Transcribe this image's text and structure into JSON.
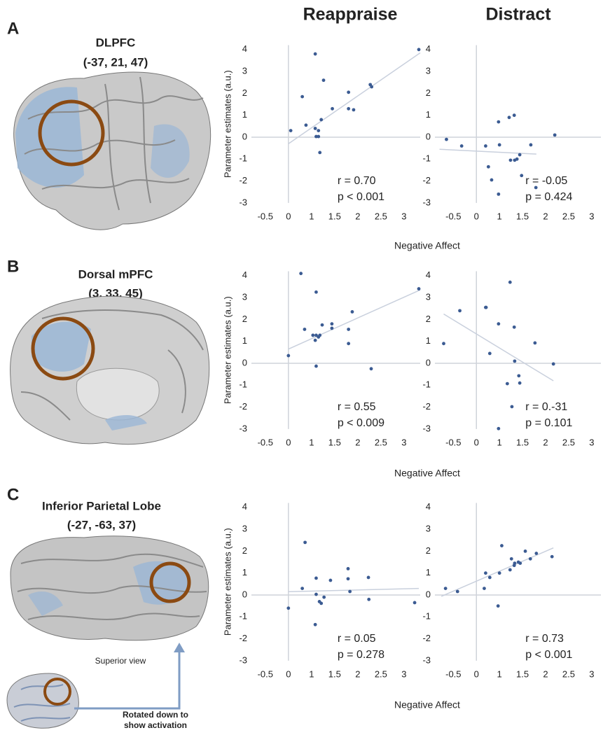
{
  "column_titles": [
    "Reappraise",
    "Distract"
  ],
  "panels": [
    {
      "letter": "A",
      "region": "DLPFC",
      "coordinates": "(-37,  21,  47)",
      "x_label": "Negative Affect"
    },
    {
      "letter": "B",
      "region": "Dorsal mPFC",
      "coordinates": "(3, 33, 45)",
      "x_label": "Negative Affect"
    },
    {
      "letter": "C",
      "region": "Inferior Parietal Lobe",
      "coordinates": "(-27, -63, 37)",
      "x_label": "Negative Affect"
    }
  ],
  "inset": {
    "caption": "Superior view",
    "arrow_text": [
      "Rotated down to",
      "show activation"
    ]
  },
  "chart_data": [
    {
      "type": "scatter",
      "y_label": "Parameter estimates (a.u.)",
      "color": "#3b5b92",
      "x": [
        0.05,
        0.38,
        0.3,
        0.58,
        0.76,
        0.58,
        0.6,
        0.65,
        0.65,
        0.68,
        0.71,
        0.95,
        1.3,
        1.3,
        1.41,
        1.77,
        1.8,
        2.82
      ],
      "values": [
        0.3,
        0.55,
        1.85,
        3.8,
        2.6,
        0.4,
        0.03,
        0.03,
        0.3,
        -0.7,
        0.8,
        1.3,
        2.05,
        1.3,
        1.25,
        2.4,
        2.3,
        4.0
      ],
      "fit": {
        "color": "#c9d0dd",
        "x": [
          0,
          2.85
        ],
        "values": [
          -0.3,
          3.85
        ]
      },
      "annotations": [
        "r = 0.70",
        "p < 0.001"
      ],
      "xlim": [
        -0.8,
        2.85
      ],
      "ylim": [
        -3,
        4.2
      ],
      "xticks": [
        -0.5,
        0,
        {
          "value": 0.5,
          "label": "1"
        },
        {
          "value": 1,
          "label": "1.5"
        },
        {
          "value": 1.5,
          "label": "2"
        },
        {
          "value": 2,
          "label": "2.5"
        },
        {
          "value": 2.5,
          "label": "3"
        }
      ],
      "yticks": [
        -3,
        -2,
        -1,
        0,
        1,
        2,
        3,
        4
      ]
    },
    {
      "type": "scatter",
      "color": "#3b5b92",
      "x": [
        -0.65,
        -0.32,
        0.2,
        0.26,
        0.33,
        0.48,
        0.5,
        0.48,
        0.71,
        0.82,
        0.74,
        0.83,
        0.88,
        0.94,
        0.98,
        1.18,
        1.29,
        1.7
      ],
      "values": [
        -0.1,
        -0.4,
        -0.4,
        -1.35,
        -1.95,
        0.7,
        -0.35,
        -2.6,
        0.9,
        1.0,
        -1.05,
        -1.05,
        -1.0,
        -0.8,
        -1.75,
        -0.35,
        -2.3,
        0.1
      ],
      "fit": {
        "color": "#c9d0dd",
        "x": [
          -0.8,
          1.3
        ],
        "values": [
          -0.55,
          -0.77
        ]
      },
      "annotations": [
        "r = -0.05",
        "p = 0.424"
      ],
      "xlim": [
        -0.9,
        2.7
      ],
      "ylim": [
        -3,
        4.2
      ],
      "xticks": [
        -0.5,
        0,
        {
          "value": 0.5,
          "label": "1"
        },
        {
          "value": 1,
          "label": "1.5"
        },
        {
          "value": 1.5,
          "label": "2"
        },
        {
          "value": 2,
          "label": "2.5"
        },
        {
          "value": 2.5,
          "label": "3"
        }
      ],
      "yticks": [
        -3,
        -2,
        -1,
        0,
        1,
        2,
        3,
        4
      ]
    },
    {
      "type": "scatter",
      "y_label": "Parameter estimates (a.u.)",
      "color": "#3b5b92",
      "x": [
        0,
        0.27,
        0.35,
        0.53,
        0.58,
        0.6,
        0.65,
        0.68,
        0.6,
        0.6,
        0.73,
        0.94,
        0.94,
        1.3,
        1.3,
        1.38,
        1.79,
        2.82
      ],
      "values": [
        0.35,
        4.1,
        1.55,
        1.28,
        1.05,
        1.28,
        1.2,
        1.28,
        -0.13,
        3.25,
        1.75,
        1.6,
        1.8,
        1.55,
        0.9,
        2.35,
        -0.25,
        3.4
      ],
      "fit": {
        "color": "#c9d0dd",
        "x": [
          0,
          2.85
        ],
        "values": [
          0.65,
          3.35
        ]
      },
      "annotations": [
        "r = 0.55",
        "p < 0.009"
      ],
      "xlim": [
        -0.8,
        2.85
      ],
      "ylim": [
        -3,
        4.2
      ],
      "xticks": [
        -0.5,
        0,
        {
          "value": 0.5,
          "label": "1"
        },
        {
          "value": 1,
          "label": "1.5"
        },
        {
          "value": 1.5,
          "label": "2"
        },
        {
          "value": 2,
          "label": "2.5"
        },
        {
          "value": 2.5,
          "label": "3"
        }
      ],
      "yticks": [
        -3,
        -2,
        -1,
        0,
        1,
        2,
        3,
        4
      ]
    },
    {
      "type": "scatter",
      "color": "#3b5b92",
      "x": [
        -0.71,
        -0.36,
        0.2,
        0.21,
        0.29,
        0.48,
        0.73,
        0.82,
        0.83,
        0.67,
        0.94,
        0.92,
        0.77,
        0.48,
        1.27,
        1.67
      ],
      "values": [
        0.9,
        2.4,
        2.55,
        2.55,
        0.45,
        1.8,
        3.7,
        1.65,
        0.1,
        -0.93,
        -0.9,
        -0.57,
        -1.98,
        -2.98,
        0.93,
        -0.03
      ],
      "fit": {
        "color": "#c9d0dd",
        "x": [
          -0.71,
          1.67
        ],
        "values": [
          2.25,
          -0.8
        ]
      },
      "annotations": [
        "r = 0.-31",
        "p = 0.101"
      ],
      "xlim": [
        -0.9,
        2.7
      ],
      "ylim": [
        -3,
        4.2
      ],
      "xticks": [
        -0.5,
        0,
        {
          "value": 0.5,
          "label": "1"
        },
        {
          "value": 1,
          "label": "1.5"
        },
        {
          "value": 1.5,
          "label": "2"
        },
        {
          "value": 2,
          "label": "2.5"
        },
        {
          "value": 2.5,
          "label": "3"
        }
      ],
      "yticks": [
        -3,
        -2,
        -1,
        0,
        1,
        2,
        3,
        4
      ]
    },
    {
      "type": "scatter",
      "y_label": "Parameter estimates (a.u.)",
      "color": "#3b5b92",
      "x": [
        0,
        0.36,
        0.3,
        0.58,
        0.6,
        0.6,
        0.67,
        0.71,
        0.91,
        1.29,
        1.29,
        1.33,
        1.73,
        1.74,
        2.73,
        0.77
      ],
      "values": [
        -0.6,
        2.4,
        0.3,
        -1.35,
        0.77,
        0.03,
        -0.3,
        -0.38,
        0.67,
        0.74,
        1.2,
        0.16,
        0.8,
        -0.2,
        -0.35,
        -0.1
      ],
      "fit": {
        "color": "#c9d0dd",
        "x": [
          0,
          2.82
        ],
        "values": [
          0.15,
          0.3
        ]
      },
      "annotations": [
        "r = 0.05",
        "p = 0.278"
      ],
      "xlim": [
        -0.8,
        2.85
      ],
      "ylim": [
        -3,
        4.2
      ],
      "xticks": [
        -0.5,
        0,
        {
          "value": 0.5,
          "label": "1"
        },
        {
          "value": 1,
          "label": "1.5"
        },
        {
          "value": 1.5,
          "label": "2"
        },
        {
          "value": 2,
          "label": "2.5"
        },
        {
          "value": 2.5,
          "label": "3"
        }
      ],
      "yticks": [
        -3,
        -2,
        -1,
        0,
        1,
        2,
        3,
        4
      ]
    },
    {
      "type": "scatter",
      "color": "#3b5b92",
      "x": [
        -0.67,
        -0.41,
        0.17,
        0.2,
        0.29,
        0.5,
        0.55,
        0.73,
        0.76,
        0.82,
        0.83,
        0.91,
        0.95,
        1.06,
        1.17,
        1.3,
        1.64,
        0.47
      ],
      "values": [
        0.3,
        0.16,
        0.3,
        1.0,
        0.8,
        1.0,
        2.25,
        1.15,
        1.65,
        1.35,
        1.45,
        1.5,
        1.45,
        2.0,
        1.65,
        1.9,
        1.75,
        -0.5
      ],
      "fit": {
        "color": "#c9d0dd",
        "x": [
          -0.76,
          1.67
        ],
        "values": [
          -0.06,
          2.15
        ]
      },
      "annotations": [
        "r = 0.73",
        "p < 0.001"
      ],
      "xlim": [
        -0.9,
        2.7
      ],
      "ylim": [
        -3,
        4.2
      ],
      "xticks": [
        -0.5,
        0,
        {
          "value": 0.5,
          "label": "1"
        },
        {
          "value": 1,
          "label": "1.5"
        },
        {
          "value": 1.5,
          "label": "2"
        },
        {
          "value": 2,
          "label": "2.5"
        },
        {
          "value": 2.5,
          "label": "3"
        }
      ],
      "yticks": [
        -3,
        -2,
        -1,
        0,
        1,
        2,
        3,
        4
      ]
    }
  ]
}
